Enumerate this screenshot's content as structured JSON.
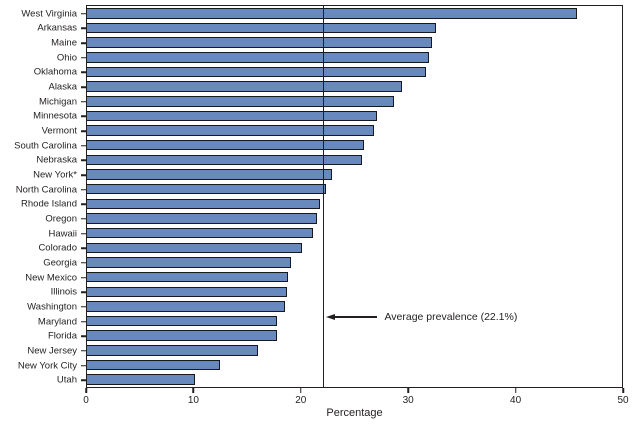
{
  "chart_data": {
    "type": "bar",
    "orientation": "horizontal",
    "title": "",
    "xlabel": "Percentage",
    "xlim": [
      0,
      50
    ],
    "xticks": [
      0,
      10,
      20,
      30,
      40,
      50
    ],
    "grid": false,
    "categories": [
      "West Virginia",
      "Arkansas",
      "Maine",
      "Ohio",
      "Oklahoma",
      "Alaska",
      "Michigan",
      "Minnesota",
      "Vermont",
      "South Carolina",
      "Nebraska",
      "New York*",
      "North Carolina",
      "Rhode Island",
      "Oregon",
      "Hawaii",
      "Colorado",
      "Georgia",
      "New Mexico",
      "Illinois",
      "Washington",
      "Maryland",
      "Florida",
      "New Jersey",
      "New York City",
      "Utah"
    ],
    "values": [
      45.8,
      32.6,
      32.2,
      32.0,
      31.7,
      29.4,
      28.7,
      27.1,
      26.8,
      25.9,
      25.7,
      22.9,
      22.3,
      21.8,
      21.5,
      21.1,
      20.1,
      19.1,
      18.8,
      18.7,
      18.5,
      17.8,
      17.8,
      16.0,
      12.4,
      10.1
    ],
    "average_line": {
      "value": 22.1,
      "label": "Average prevalence (22.1%)"
    },
    "colors": {
      "bar_fill": "#6889be",
      "bar_border": "#17191e",
      "axis": "#231f20",
      "background": "#ffffff"
    }
  }
}
